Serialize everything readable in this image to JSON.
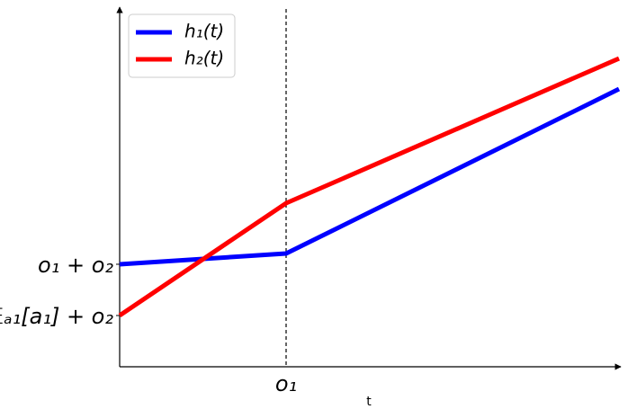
{
  "chart_data": {
    "type": "line",
    "x": [
      0,
      1,
      3
    ],
    "series": [
      {
        "name": "h₁(t)",
        "color": "#0000ff",
        "values": [
          1.146,
          1.266,
          3.105
        ]
      },
      {
        "name": "h₂(t)",
        "color": "#ff0000",
        "values": [
          0.573,
          1.829,
          3.447
        ]
      }
    ],
    "xlabel": "t",
    "xlim": [
      0,
      3
    ],
    "ylim": [
      0,
      4
    ],
    "xticks": [
      {
        "value": 1,
        "label": "o₁"
      }
    ],
    "yticks": [
      {
        "value": 1.146,
        "label": "o₁ + o₂"
      },
      {
        "value": 0.573,
        "label": "𝔼ₐ₁[a₁] + o₂"
      }
    ],
    "vline_at_xtick": true,
    "legend": "upper left"
  }
}
